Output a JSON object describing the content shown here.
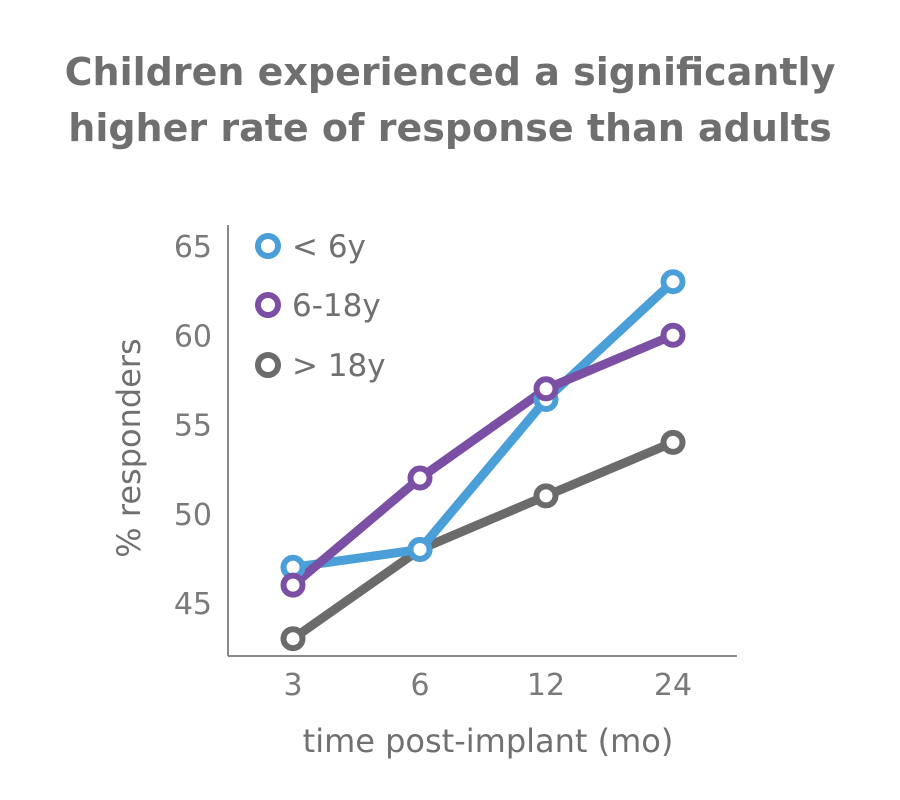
{
  "title_lines": [
    "Children experienced a significantly",
    "higher rate of response than adults"
  ],
  "chart_data": {
    "type": "line",
    "categories": [
      "3",
      "6",
      "12",
      "24"
    ],
    "xlabel": "time post-implant (mo)",
    "ylabel": "% responders",
    "ylim": [
      43,
      65
    ],
    "yticks": [
      45,
      50,
      55,
      60,
      65
    ],
    "grid": false,
    "legend": "top-left",
    "series": [
      {
        "name": "< 6y",
        "color": "#4a9fd8",
        "values": [
          47,
          48,
          56.4,
          63
        ]
      },
      {
        "name": "6-18y",
        "color": "#7b4fa3",
        "values": [
          46,
          52,
          57,
          60
        ]
      },
      {
        "name": "> 18y",
        "color": "#6b6b6b",
        "values": [
          43,
          48,
          51,
          54
        ]
      }
    ]
  }
}
